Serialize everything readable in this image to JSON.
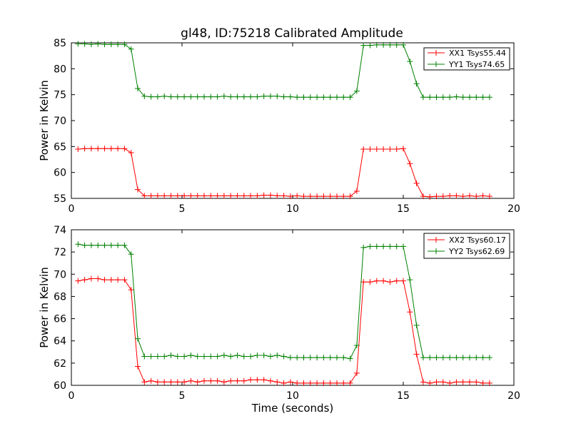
{
  "chart_data": [
    {
      "type": "line",
      "title": "gl48, ID:75218 Calibrated Amplitude",
      "xlabel": "",
      "ylabel": "Power in Kelvin",
      "xlim": [
        0,
        20
      ],
      "ylim": [
        55,
        85
      ],
      "xticks": [
        0,
        5,
        10,
        15,
        20
      ],
      "yticks": [
        55,
        60,
        65,
        70,
        75,
        80,
        85
      ],
      "legend_position": "top-right",
      "grid": false,
      "x": [
        0.3,
        0.6,
        0.9,
        1.2,
        1.5,
        1.8,
        2.1,
        2.4,
        2.7,
        3.0,
        3.3,
        3.6,
        3.9,
        4.2,
        4.5,
        4.8,
        5.1,
        5.4,
        5.7,
        6.0,
        6.3,
        6.6,
        6.9,
        7.2,
        7.5,
        7.8,
        8.1,
        8.4,
        8.7,
        9.0,
        9.3,
        9.6,
        9.9,
        10.2,
        10.5,
        10.8,
        11.1,
        11.4,
        11.7,
        12.0,
        12.3,
        12.6,
        12.9,
        13.2,
        13.5,
        13.8,
        14.1,
        14.4,
        14.7,
        15.0,
        15.3,
        15.6,
        15.9,
        16.2,
        16.5,
        16.8,
        17.1,
        17.4,
        17.7,
        18.0,
        18.3,
        18.6,
        18.9
      ],
      "series": [
        {
          "name": "XX1 Tsys55.44",
          "color": "#ff0000",
          "values": [
            64.5,
            64.6,
            64.6,
            64.6,
            64.6,
            64.6,
            64.6,
            64.6,
            63.8,
            56.7,
            55.5,
            55.5,
            55.5,
            55.5,
            55.5,
            55.5,
            55.5,
            55.5,
            55.5,
            55.5,
            55.5,
            55.5,
            55.5,
            55.5,
            55.5,
            55.5,
            55.5,
            55.5,
            55.6,
            55.6,
            55.5,
            55.5,
            55.4,
            55.5,
            55.4,
            55.4,
            55.4,
            55.4,
            55.4,
            55.4,
            55.4,
            55.4,
            56.4,
            64.5,
            64.5,
            64.5,
            64.5,
            64.5,
            64.5,
            64.6,
            61.7,
            57.9,
            55.4,
            55.3,
            55.4,
            55.4,
            55.5,
            55.5,
            55.4,
            55.5,
            55.4,
            55.5,
            55.4
          ]
        },
        {
          "name": "YY1 Tsys74.65",
          "color": "#008000",
          "values": [
            84.8,
            84.8,
            84.7,
            84.8,
            84.7,
            84.7,
            84.7,
            84.7,
            83.8,
            76.2,
            74.7,
            74.6,
            74.6,
            74.7,
            74.6,
            74.6,
            74.6,
            74.6,
            74.6,
            74.6,
            74.6,
            74.6,
            74.7,
            74.6,
            74.6,
            74.6,
            74.6,
            74.6,
            74.7,
            74.7,
            74.7,
            74.6,
            74.6,
            74.5,
            74.5,
            74.5,
            74.5,
            74.5,
            74.5,
            74.5,
            74.5,
            74.5,
            75.7,
            84.5,
            84.5,
            84.6,
            84.6,
            84.6,
            84.6,
            84.6,
            81.4,
            77.1,
            74.5,
            74.5,
            74.5,
            74.5,
            74.5,
            74.6,
            74.5,
            74.5,
            74.5,
            74.5,
            74.5
          ]
        }
      ]
    },
    {
      "type": "line",
      "title": "",
      "xlabel": "Time (seconds)",
      "ylabel": "Power in Kelvin",
      "xlim": [
        0,
        20
      ],
      "ylim": [
        60,
        74
      ],
      "xticks": [
        0,
        5,
        10,
        15,
        20
      ],
      "yticks": [
        60,
        62,
        64,
        66,
        68,
        70,
        72,
        74
      ],
      "legend_position": "top-right",
      "grid": false,
      "x": [
        0.3,
        0.6,
        0.9,
        1.2,
        1.5,
        1.8,
        2.1,
        2.4,
        2.7,
        3.0,
        3.3,
        3.6,
        3.9,
        4.2,
        4.5,
        4.8,
        5.1,
        5.4,
        5.7,
        6.0,
        6.3,
        6.6,
        6.9,
        7.2,
        7.5,
        7.8,
        8.1,
        8.4,
        8.7,
        9.0,
        9.3,
        9.6,
        9.9,
        10.2,
        10.5,
        10.8,
        11.1,
        11.4,
        11.7,
        12.0,
        12.3,
        12.6,
        12.9,
        13.2,
        13.5,
        13.8,
        14.1,
        14.4,
        14.7,
        15.0,
        15.3,
        15.6,
        15.9,
        16.2,
        16.5,
        16.8,
        17.1,
        17.4,
        17.7,
        18.0,
        18.3,
        18.6,
        18.9
      ],
      "series": [
        {
          "name": "XX2 Tsys60.17",
          "color": "#ff0000",
          "values": [
            69.4,
            69.5,
            69.6,
            69.6,
            69.5,
            69.5,
            69.5,
            69.5,
            68.6,
            61.7,
            60.3,
            60.4,
            60.3,
            60.3,
            60.3,
            60.3,
            60.3,
            60.4,
            60.3,
            60.4,
            60.4,
            60.4,
            60.3,
            60.4,
            60.4,
            60.4,
            60.5,
            60.5,
            60.5,
            60.4,
            60.3,
            60.2,
            60.3,
            60.2,
            60.2,
            60.2,
            60.2,
            60.2,
            60.2,
            60.2,
            60.2,
            60.2,
            61.1,
            69.3,
            69.3,
            69.4,
            69.4,
            69.3,
            69.4,
            69.4,
            66.6,
            62.8,
            60.3,
            60.2,
            60.3,
            60.3,
            60.2,
            60.3,
            60.3,
            60.3,
            60.3,
            60.2,
            60.2
          ]
        },
        {
          "name": "YY2 Tsys62.69",
          "color": "#008000",
          "values": [
            72.7,
            72.6,
            72.6,
            72.6,
            72.6,
            72.6,
            72.6,
            72.6,
            71.8,
            64.2,
            62.6,
            62.6,
            62.6,
            62.6,
            62.7,
            62.6,
            62.6,
            62.7,
            62.6,
            62.6,
            62.6,
            62.6,
            62.7,
            62.6,
            62.7,
            62.6,
            62.6,
            62.7,
            62.7,
            62.6,
            62.7,
            62.6,
            62.5,
            62.5,
            62.5,
            62.5,
            62.5,
            62.5,
            62.5,
            62.5,
            62.5,
            62.4,
            63.6,
            72.4,
            72.5,
            72.5,
            72.5,
            72.5,
            72.5,
            72.5,
            69.5,
            65.4,
            62.5,
            62.5,
            62.5,
            62.5,
            62.5,
            62.5,
            62.5,
            62.5,
            62.5,
            62.5,
            62.5
          ]
        }
      ]
    }
  ]
}
